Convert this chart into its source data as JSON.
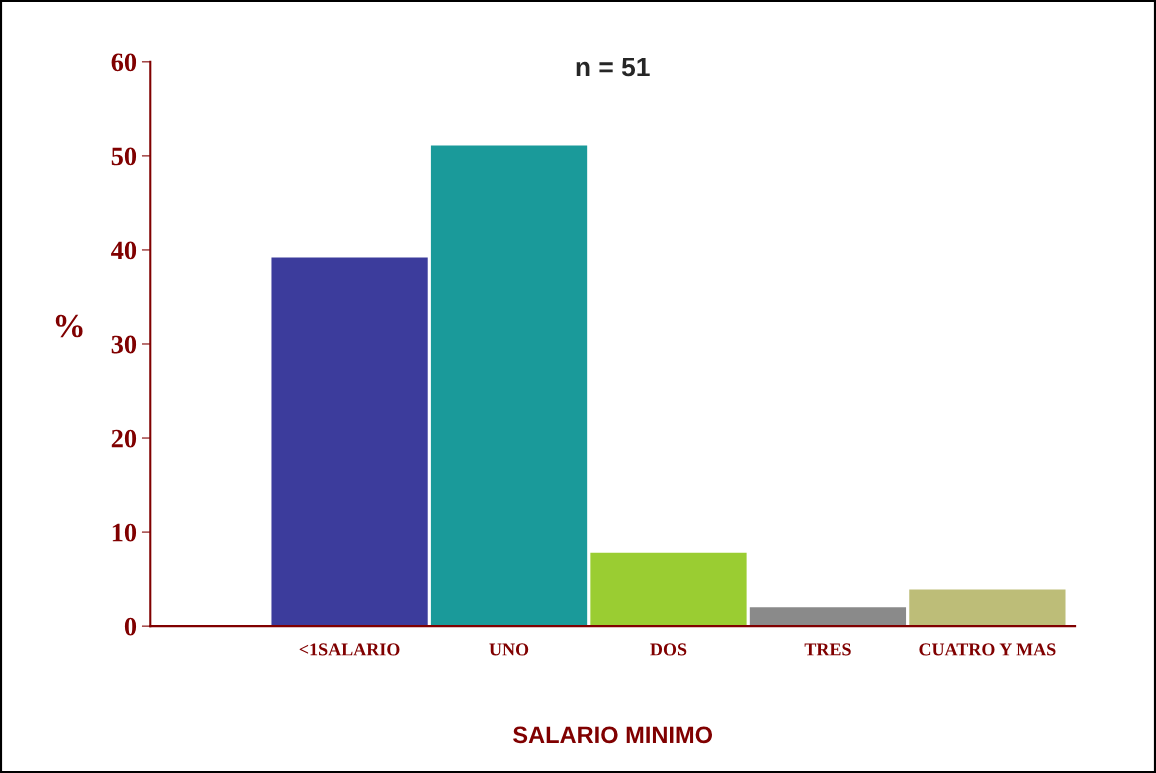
{
  "chart_data": {
    "type": "bar",
    "title": "n = 51",
    "xlabel": "SALARIO MINIMO",
    "ylabel": "%",
    "categories": [
      "<1SALARIO",
      "UNO",
      "DOS",
      "TRES",
      "CUATRO Y MAS"
    ],
    "values": [
      39.2,
      51.1,
      7.8,
      2.0,
      3.9
    ],
    "colors": [
      "#3c3c9c",
      "#1a9a9a",
      "#9acd32",
      "#8a8a8a",
      "#bdbd78"
    ],
    "ylim": [
      0,
      60
    ],
    "yticks": [
      0,
      10,
      20,
      30,
      40,
      50,
      60
    ],
    "grid": false,
    "legend": false
  }
}
